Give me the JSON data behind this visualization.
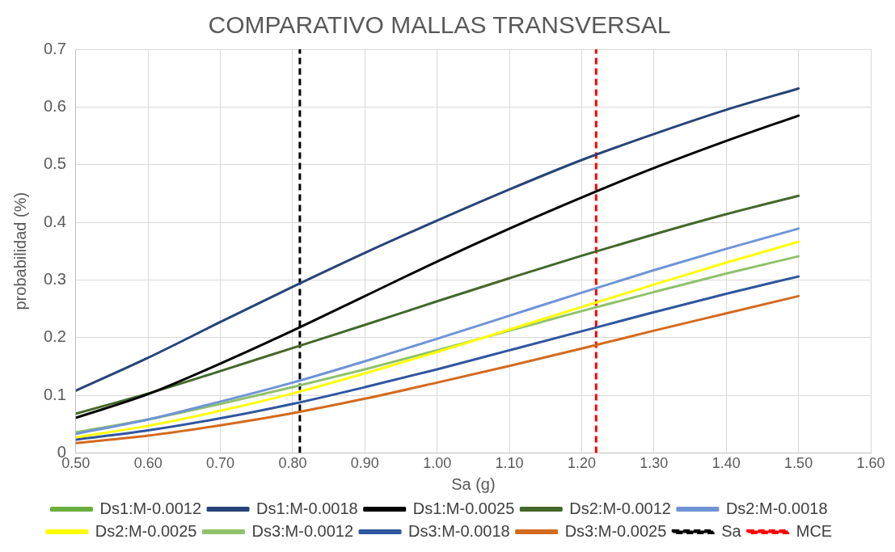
{
  "chart_data": {
    "type": "line",
    "title": "COMPARATIVO MALLAS TRANSVERSAL",
    "xlabel": "Sa (g)",
    "ylabel": "probabilidad (%)",
    "x": [
      0.5,
      0.6,
      0.7,
      0.8,
      0.9,
      1.0,
      1.1,
      1.2,
      1.3,
      1.4,
      1.5
    ],
    "series": [
      {
        "name": "Ds1:M-0.0012",
        "color": "#6aae3e",
        "values": [
          null,
          null,
          null,
          null,
          null,
          null,
          null,
          null,
          null,
          null,
          null
        ]
      },
      {
        "name": "Ds1:M-0.0018",
        "color": "#264478",
        "values": [
          0.108,
          0.165,
          0.227,
          0.288,
          0.347,
          0.403,
          0.457,
          0.508,
          0.553,
          0.595,
          0.632
        ]
      },
      {
        "name": "Ds1:M-0.0025",
        "color": "#000000",
        "values": [
          0.061,
          0.102,
          0.155,
          0.212,
          0.272,
          0.332,
          0.389,
          0.443,
          0.494,
          0.541,
          0.585
        ]
      },
      {
        "name": "Ds2:M-0.0012",
        "color": "#43682b",
        "values": [
          0.068,
          0.103,
          0.142,
          0.182,
          0.222,
          0.263,
          0.303,
          0.342,
          0.379,
          0.414,
          0.446
        ]
      },
      {
        "name": "Ds2:M-0.0018",
        "color": "#6f94d6",
        "values": [
          0.033,
          0.058,
          0.089,
          0.122,
          0.159,
          0.198,
          0.238,
          0.278,
          0.317,
          0.354,
          0.389
        ]
      },
      {
        "name": "Ds2:M-0.0025",
        "color": "#ffff00",
        "values": [
          0.027,
          0.047,
          0.073,
          0.103,
          0.138,
          0.175,
          0.214,
          0.253,
          0.292,
          0.33,
          0.366
        ]
      },
      {
        "name": "Ds3:M-0.0012",
        "color": "#8fc16b",
        "values": [
          0.036,
          0.058,
          0.085,
          0.114,
          0.145,
          0.178,
          0.212,
          0.246,
          0.279,
          0.311,
          0.341
        ]
      },
      {
        "name": "Ds3:M-0.0018",
        "color": "#2f55a0",
        "values": [
          0.023,
          0.039,
          0.06,
          0.085,
          0.114,
          0.145,
          0.178,
          0.211,
          0.244,
          0.276,
          0.306
        ]
      },
      {
        "name": "Ds3:M-0.0025",
        "color": "#d46a1e",
        "values": [
          0.017,
          0.03,
          0.048,
          0.069,
          0.094,
          0.122,
          0.151,
          0.181,
          0.212,
          0.242,
          0.272
        ]
      }
    ],
    "ref_lines": [
      {
        "axis": "x",
        "value": 0.81,
        "label": "Sa",
        "color": "#000000",
        "line_style": "dashed"
      },
      {
        "axis": "x",
        "value": 1.22,
        "label": "MCE",
        "color": "#ff0000",
        "line_style": "dashed"
      }
    ],
    "xlim": [
      0.5,
      1.6
    ],
    "xticks": [
      {
        "value": 0.5,
        "label": "0.50"
      },
      {
        "value": 0.6,
        "label": "0.60"
      },
      {
        "value": 0.7,
        "label": "0.70"
      },
      {
        "value": 0.8,
        "label": "0.80"
      },
      {
        "value": 0.9,
        "label": "0.90"
      },
      {
        "value": 1.0,
        "label": "1.00"
      },
      {
        "value": 1.1,
        "label": "1.10"
      },
      {
        "value": 1.2,
        "label": "1.20"
      },
      {
        "value": 1.3,
        "label": "1.30"
      },
      {
        "value": 1.4,
        "label": "1.40"
      },
      {
        "value": 1.5,
        "label": "1.50"
      },
      {
        "value": 1.6,
        "label": "1.60"
      }
    ],
    "ylim": [
      0,
      0.7
    ],
    "yticks": [
      0,
      0.1,
      0.2,
      0.3,
      0.4,
      0.5,
      0.6,
      0.7
    ],
    "grid": true,
    "legend": "bottom",
    "marker": "none",
    "line_style": "solid"
  }
}
